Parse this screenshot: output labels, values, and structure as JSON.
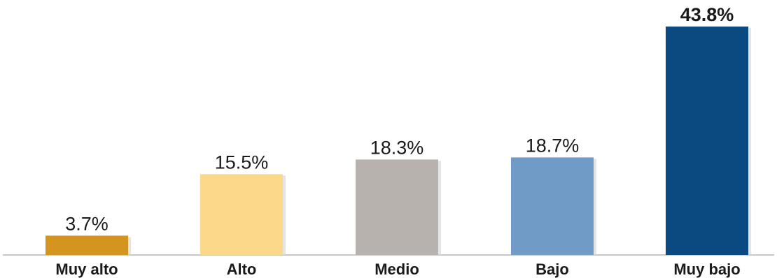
{
  "chart_data": {
    "type": "bar",
    "categories": [
      "Muy alto",
      "Alto",
      "Medio",
      "Bajo",
      "Muy bajo"
    ],
    "values": [
      3.7,
      15.5,
      18.3,
      18.7,
      43.8
    ],
    "value_labels": [
      "3.7%",
      "15.5%",
      "18.3%",
      "18.7%",
      "43.8%"
    ],
    "colors": [
      "#d4951e",
      "#fcd98a",
      "#b8b2ae",
      "#6f9bc6",
      "#0b4a80"
    ],
    "title": "",
    "xlabel": "",
    "ylabel": "",
    "ylim": [
      0,
      43.8
    ],
    "grid": false,
    "legend": "none"
  }
}
